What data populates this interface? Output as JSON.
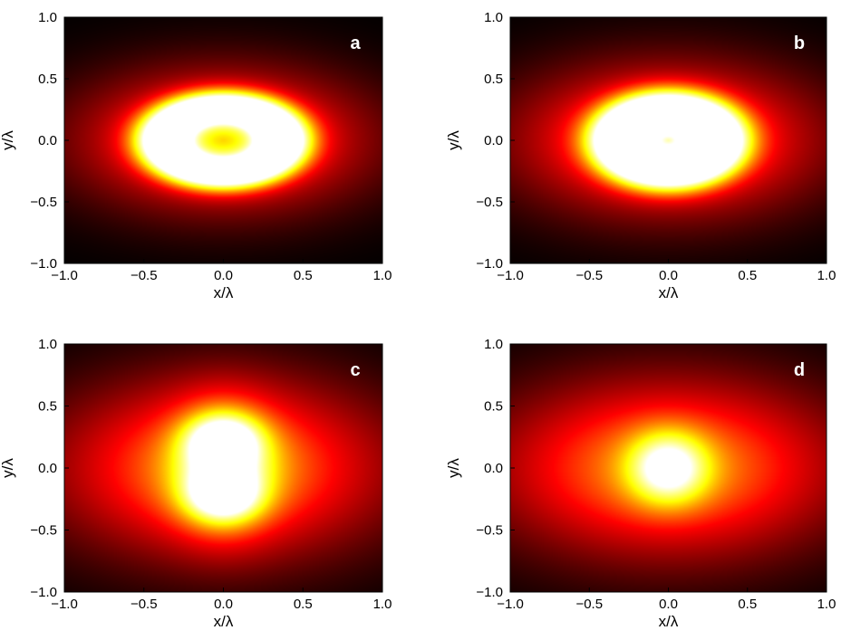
{
  "chart_data": [
    {
      "type": "heatmap",
      "panel_label": "a",
      "xlabel": "x/λ",
      "ylabel": "y/λ",
      "xlim": [
        -1.0,
        1.0
      ],
      "ylim": [
        -1.0,
        1.0
      ],
      "xticks": [
        "−1.0",
        "−0.5",
        "0.0",
        "0.5",
        "1.0"
      ],
      "yticks": [
        "−1.0",
        "−0.5",
        "0.0",
        "0.5",
        "1.0"
      ],
      "colormap": "hot",
      "grid": false,
      "intensity_features": [
        {
          "shape": "ring",
          "cx": 0.0,
          "cy": 0.0,
          "rx": 0.36,
          "ry": 0.26,
          "width": 0.14,
          "peak": 1.0
        },
        {
          "shape": "blob",
          "cx": 0.0,
          "cy": 0.0,
          "rx": 0.9,
          "ry": 0.56,
          "peak": 0.58
        },
        {
          "shape": "blob",
          "cx": 0.0,
          "cy": 0.0,
          "rx": 0.12,
          "ry": 0.1,
          "peak": 0.08
        }
      ]
    },
    {
      "type": "heatmap",
      "panel_label": "b",
      "xlabel": "x/λ",
      "ylabel": "y/λ",
      "xlim": [
        -1.0,
        1.0
      ],
      "ylim": [
        -1.0,
        1.0
      ],
      "xticks": [
        "−1.0",
        "−0.5",
        "0.0",
        "0.5",
        "1.0"
      ],
      "yticks": [
        "−1.0",
        "−0.5",
        "0.0",
        "0.5",
        "1.0"
      ],
      "colormap": "hot",
      "grid": false,
      "intensity_features": [
        {
          "shape": "ring",
          "cx": 0.0,
          "cy": 0.0,
          "rx": 0.3,
          "ry": 0.24,
          "width": 0.17,
          "peak": 1.0
        },
        {
          "shape": "blob",
          "cx": 0.0,
          "cy": 0.0,
          "rx": 0.95,
          "ry": 0.6,
          "peak": 0.6
        },
        {
          "shape": "blob",
          "cx": 0.0,
          "cy": 0.0,
          "rx": 0.2,
          "ry": 0.16,
          "peak": 0.18
        }
      ]
    },
    {
      "type": "heatmap",
      "panel_label": "c",
      "xlabel": "x/λ",
      "ylabel": "y/λ",
      "xlim": [
        -1.0,
        1.0
      ],
      "ylim": [
        -1.0,
        1.0
      ],
      "xticks": [
        "−1.0",
        "−0.5",
        "0.0",
        "0.5",
        "1.0"
      ],
      "yticks": [
        "−1.0",
        "−0.5",
        "0.0",
        "0.5",
        "1.0"
      ],
      "colormap": "hot",
      "grid": false,
      "intensity_features": [
        {
          "shape": "blob",
          "cx": 0.0,
          "cy": 0.22,
          "rx": 0.22,
          "ry": 0.2,
          "peak": 0.5
        },
        {
          "shape": "blob",
          "cx": 0.0,
          "cy": -0.22,
          "rx": 0.22,
          "ry": 0.2,
          "peak": 0.5
        },
        {
          "shape": "blob",
          "cx": 0.0,
          "cy": 0.0,
          "rx": 0.3,
          "ry": 0.5,
          "peak": 0.45
        },
        {
          "shape": "blob",
          "cx": 0.0,
          "cy": 0.0,
          "rx": 1.05,
          "ry": 0.72,
          "peak": 0.62
        }
      ]
    },
    {
      "type": "heatmap",
      "panel_label": "d",
      "xlabel": "x/λ",
      "ylabel": "y/λ",
      "xlim": [
        -1.0,
        1.0
      ],
      "ylim": [
        -1.0,
        1.0
      ],
      "xticks": [
        "−1.0",
        "−0.5",
        "0.0",
        "0.5",
        "1.0"
      ],
      "yticks": [
        "−1.0",
        "−0.5",
        "0.0",
        "0.5",
        "1.0"
      ],
      "colormap": "hot",
      "grid": false,
      "intensity_features": [
        {
          "shape": "blob",
          "cx": 0.0,
          "cy": 0.0,
          "rx": 0.24,
          "ry": 0.28,
          "peak": 0.55
        },
        {
          "shape": "blob",
          "cx": 0.0,
          "cy": 0.0,
          "rx": 1.1,
          "ry": 0.72,
          "peak": 0.62
        }
      ]
    }
  ]
}
